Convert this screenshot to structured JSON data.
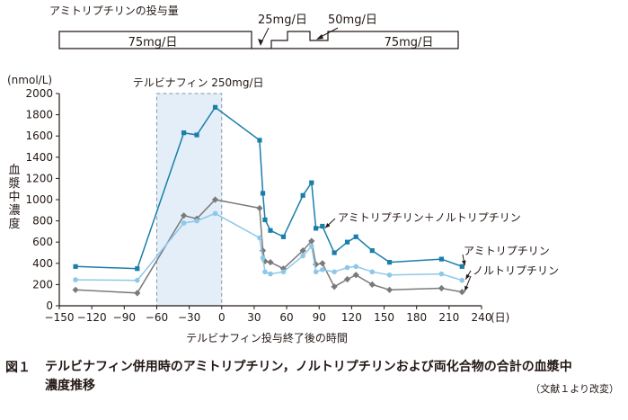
{
  "dosing": {
    "title": "アミトリプチリンの投与量",
    "left_label": "75mg/日",
    "right_label": "75mg/日",
    "low_label": "25mg/日",
    "mid_label": "50mg/日"
  },
  "caption": {
    "label": "図１",
    "text": "テルビナフィン併用時のアミトリプチリン，ノルトリプチリンおよび両化合物の合計の血漿中濃度推移",
    "note": "（文献１より改変）"
  },
  "chart_data": {
    "type": "line",
    "ylabel": "血漿中濃度",
    "yunit": "(nmol/L)",
    "xlabel": "テルビナフィン投与終了後の時間",
    "xunit": "(日)",
    "xlim": [
      -150,
      240
    ],
    "ylim": [
      0,
      2000
    ],
    "xticks": [
      -150,
      -120,
      -90,
      -60,
      -30,
      0,
      30,
      60,
      90,
      120,
      150,
      180,
      210,
      240
    ],
    "yticks": [
      0,
      200,
      400,
      600,
      800,
      1000,
      1200,
      1400,
      1600,
      1800,
      2000
    ],
    "xtick_labels": [
      "−150",
      "−120",
      "−90",
      "−60",
      "−30",
      "0",
      "30",
      "60",
      "90",
      "120",
      "150",
      "180",
      "210",
      "240"
    ],
    "yticks_labels": [
      "0",
      "200",
      "400",
      "600",
      "800",
      "1000",
      "1200",
      "1400",
      "1600",
      "1800",
      "2000"
    ],
    "shaded_region": {
      "x": [
        -60,
        0
      ],
      "label": "テルビナフィン 250mg/日"
    },
    "series": [
      {
        "name": "アミトリプチリン＋ノルトリプチリン",
        "color": "#1a7fa8",
        "marker": "square",
        "points": [
          [
            -135,
            370
          ],
          [
            -78,
            350
          ],
          [
            -35,
            1630
          ],
          [
            -23,
            1610
          ],
          [
            -6,
            1870
          ],
          [
            35,
            1560
          ],
          [
            38,
            1060
          ],
          [
            40,
            810
          ],
          [
            45,
            710
          ],
          [
            57,
            650
          ],
          [
            75,
            1040
          ],
          [
            83,
            1160
          ],
          [
            87,
            730
          ],
          [
            93,
            750
          ],
          [
            104,
            500
          ],
          [
            116,
            600
          ],
          [
            124,
            650
          ],
          [
            139,
            520
          ],
          [
            155,
            410
          ],
          [
            203,
            440
          ],
          [
            222,
            370
          ]
        ]
      },
      {
        "name": "アミトリプチリン",
        "color": "#8ec8e8",
        "marker": "circle",
        "points": [
          [
            -135,
            245
          ],
          [
            -78,
            240
          ],
          [
            -35,
            780
          ],
          [
            -23,
            800
          ],
          [
            -6,
            870
          ],
          [
            35,
            640
          ],
          [
            38,
            450
          ],
          [
            40,
            320
          ],
          [
            45,
            300
          ],
          [
            57,
            320
          ],
          [
            75,
            470
          ],
          [
            83,
            560
          ],
          [
            87,
            320
          ],
          [
            93,
            340
          ],
          [
            104,
            320
          ],
          [
            116,
            360
          ],
          [
            124,
            370
          ],
          [
            139,
            320
          ],
          [
            155,
            290
          ],
          [
            203,
            300
          ],
          [
            222,
            240
          ]
        ]
      },
      {
        "name": "ノルトリプチリン",
        "color": "#7a7a7a",
        "marker": "diamond",
        "points": [
          [
            -135,
            150
          ],
          [
            -78,
            120
          ],
          [
            -35,
            850
          ],
          [
            -23,
            820
          ],
          [
            -6,
            1000
          ],
          [
            35,
            920
          ],
          [
            38,
            520
          ],
          [
            40,
            420
          ],
          [
            45,
            410
          ],
          [
            57,
            350
          ],
          [
            75,
            520
          ],
          [
            83,
            610
          ],
          [
            87,
            390
          ],
          [
            93,
            400
          ],
          [
            104,
            180
          ],
          [
            116,
            250
          ],
          [
            124,
            290
          ],
          [
            139,
            200
          ],
          [
            155,
            150
          ],
          [
            203,
            165
          ],
          [
            222,
            130
          ]
        ]
      }
    ]
  }
}
